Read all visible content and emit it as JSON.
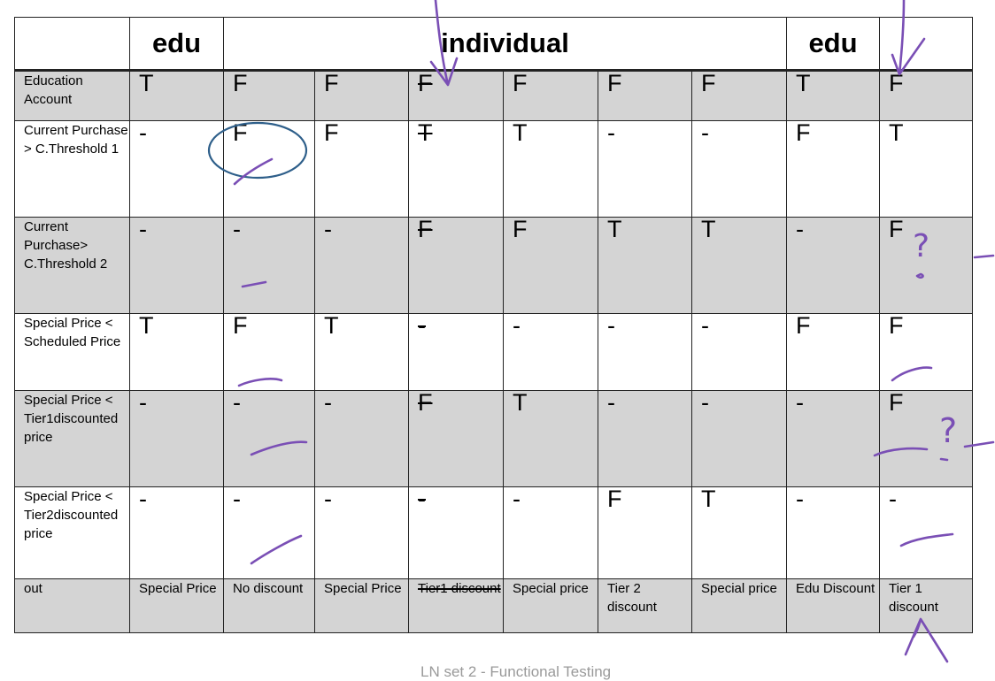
{
  "header": [
    "",
    "edu",
    "individual",
    "edu",
    ""
  ],
  "rows": [
    {
      "label": "Education Account",
      "shaded": true,
      "values": [
        "T",
        "F",
        "F",
        "F",
        "F",
        "F",
        "F",
        "T",
        "F"
      ]
    },
    {
      "label": "Current Purchase > C.Threshold 1",
      "shaded": false,
      "values": [
        "-",
        "F",
        "F",
        "T",
        "T",
        "-",
        "-",
        "F",
        "T"
      ]
    },
    {
      "label": "Current Purchase> C.Threshold 2",
      "shaded": true,
      "values": [
        "-",
        "-",
        "-",
        "F",
        "F",
        "T",
        "T",
        "-",
        "F"
      ]
    },
    {
      "label": "Special Price < Scheduled Price",
      "shaded": false,
      "values": [
        "T",
        "F",
        "T",
        "-",
        "-",
        "-",
        "-",
        "F",
        "F"
      ]
    },
    {
      "label": "Special Price < Tier1discounted price",
      "shaded": true,
      "values": [
        "-",
        "-",
        "-",
        "F",
        "T",
        "-",
        "-",
        "-",
        "F"
      ]
    },
    {
      "label": "Special Price < Tier2discounted price",
      "shaded": false,
      "values": [
        "-",
        "-",
        "-",
        "-",
        "-",
        "F",
        "T",
        "-",
        "-"
      ]
    }
  ],
  "output": {
    "label": "out",
    "values": [
      "Special Price",
      "No discount",
      "Special Price",
      "Tier1 discount",
      "Special price",
      "Tier 2 discount",
      "Special price",
      "Edu Discount",
      "Tier 1 discount"
    ]
  },
  "annotations": {
    "struck_column": 4,
    "highlighted_cell": {
      "row": 2,
      "column": 2,
      "color": "#e0461b"
    },
    "ink_color": "#7a4fb5",
    "marks": [
      "?",
      "?"
    ]
  },
  "footer_text": "LN set 2 - Functional Testing"
}
